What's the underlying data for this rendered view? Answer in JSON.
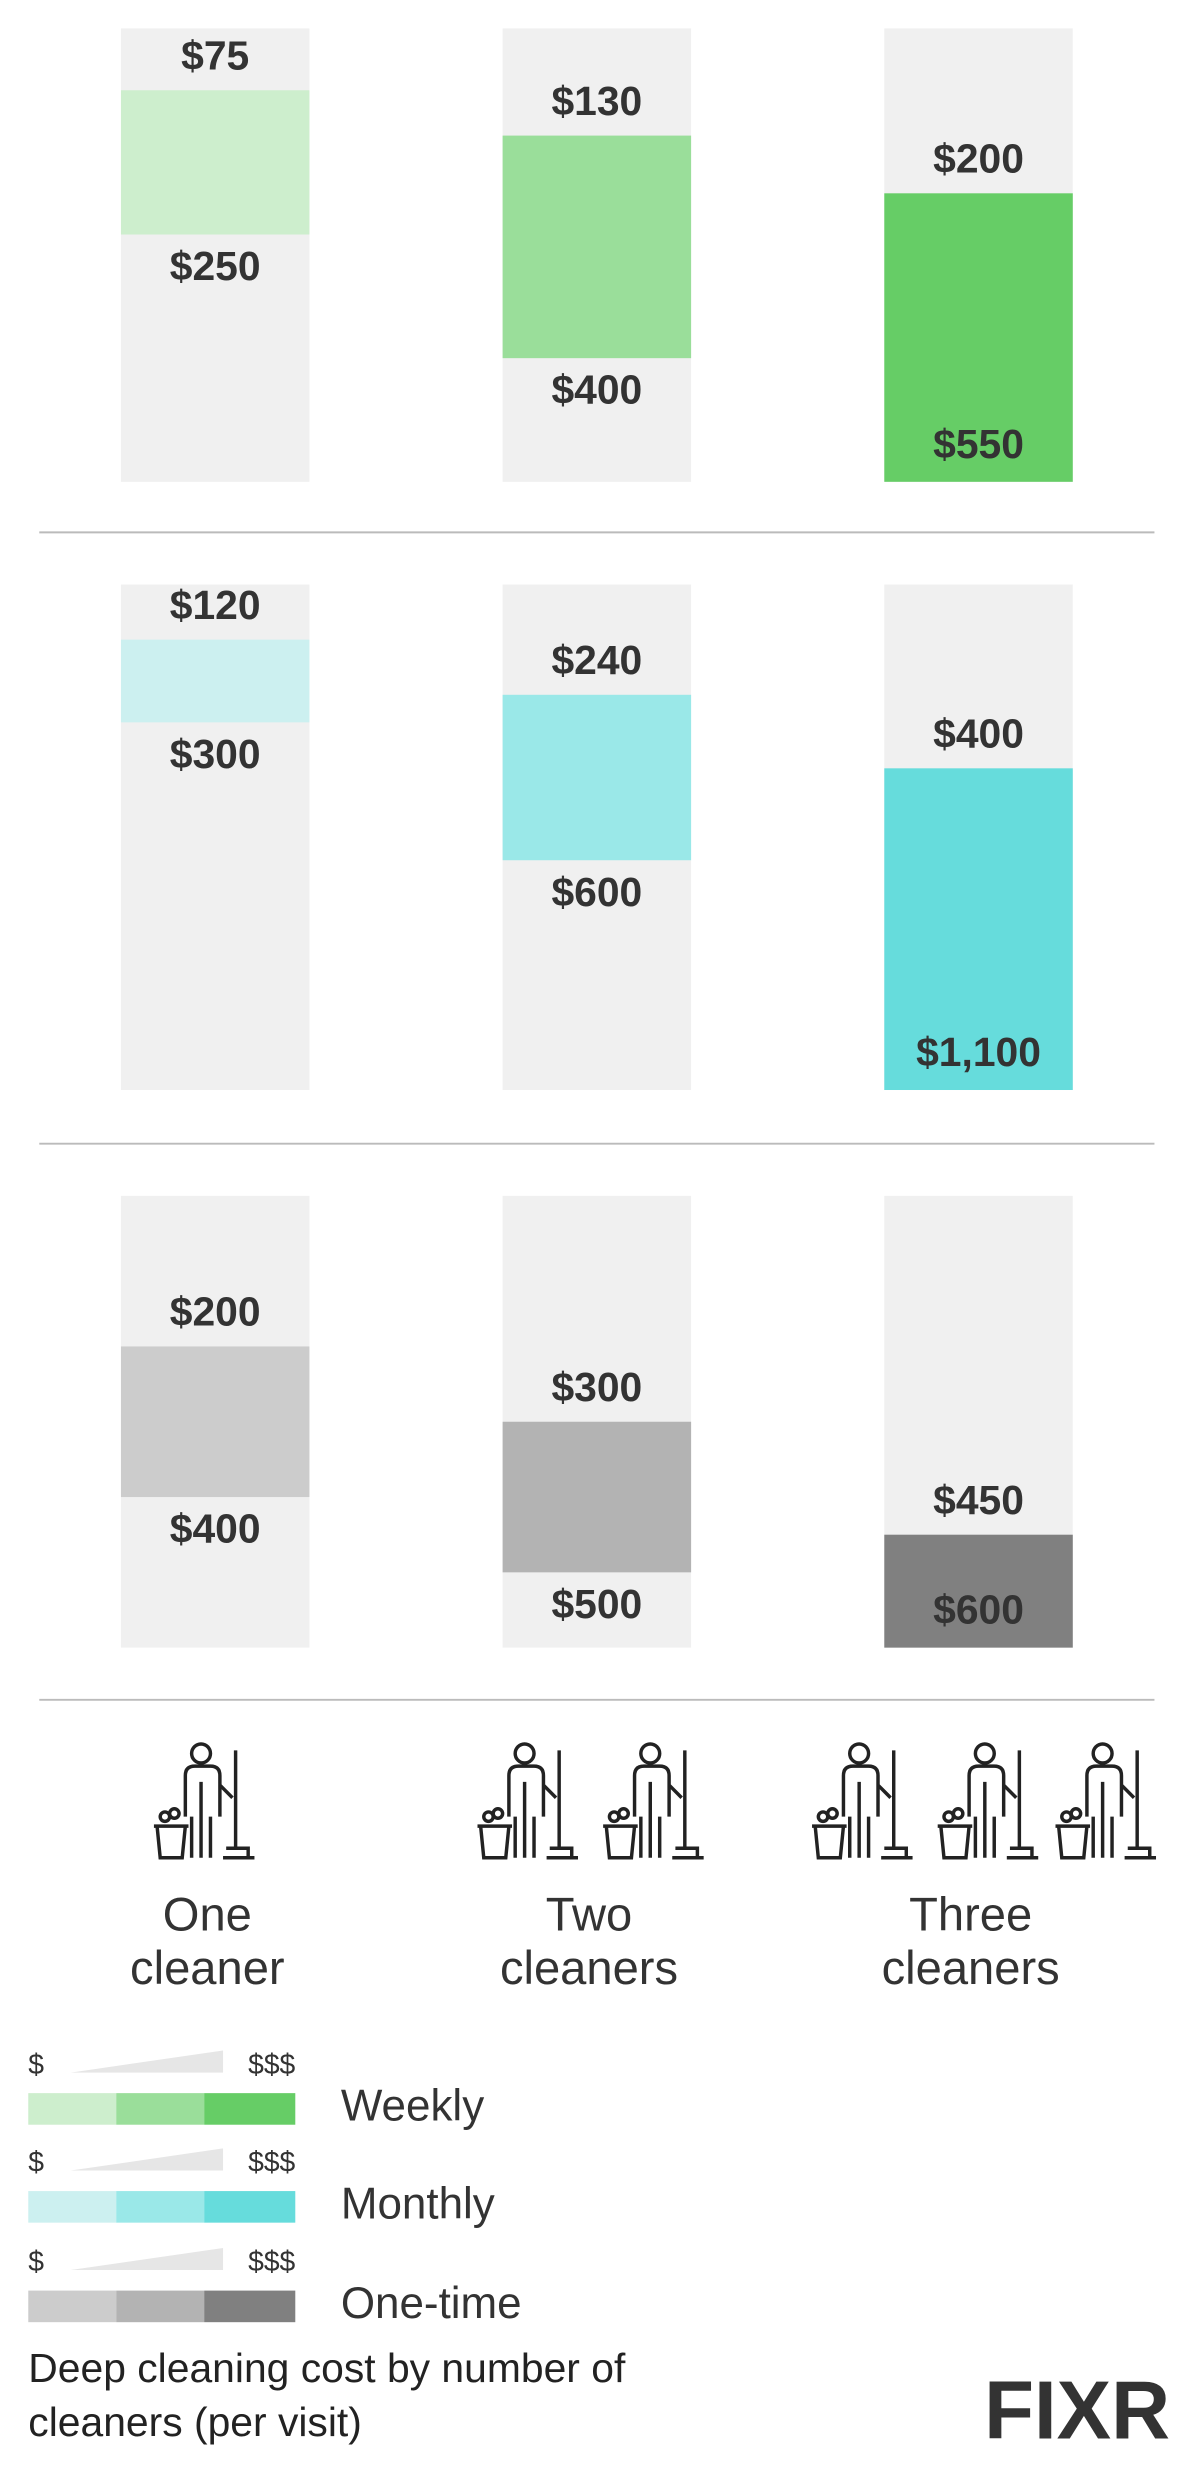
{
  "chart_data": {
    "type": "range-bar",
    "title": "Deep cleaning cost by number of cleaners (per visit)",
    "categories": [
      "One cleaner",
      "Two cleaners",
      "Three cleaners"
    ],
    "legend_low_label": "$",
    "legend_high_label": "$$$",
    "brand": "FIXR",
    "column_color": "#f0f0f0",
    "series": [
      {
        "name": "Weekly",
        "colors": [
          "#cdeecd",
          "#9ade9a",
          "#66cd66"
        ],
        "ylim": [
          0,
          550
        ],
        "values": [
          [
            75,
            250
          ],
          [
            130,
            400
          ],
          [
            200,
            550
          ]
        ],
        "value_labels": [
          [
            "$75",
            "$250"
          ],
          [
            "$130",
            "$400"
          ],
          [
            "$200",
            "$550"
          ]
        ]
      },
      {
        "name": "Monthly",
        "colors": [
          "#ccf0f0",
          "#9ae8e8",
          "#66dcdc"
        ],
        "ylim": [
          0,
          1100
        ],
        "values": [
          [
            120,
            300
          ],
          [
            240,
            600
          ],
          [
            400,
            1100
          ]
        ],
        "value_labels": [
          [
            "$120",
            "$300"
          ],
          [
            "$240",
            "$600"
          ],
          [
            "$400",
            "$1,100"
          ]
        ]
      },
      {
        "name": "One-time",
        "colors": [
          "#cccccc",
          "#b3b3b3",
          "#808080"
        ],
        "ylim": [
          0,
          600
        ],
        "values": [
          [
            200,
            400
          ],
          [
            300,
            500
          ],
          [
            450,
            600
          ]
        ],
        "value_labels": [
          [
            "$200",
            "$400"
          ],
          [
            "$300",
            "$500"
          ],
          [
            "$450",
            "$600"
          ]
        ]
      }
    ]
  }
}
